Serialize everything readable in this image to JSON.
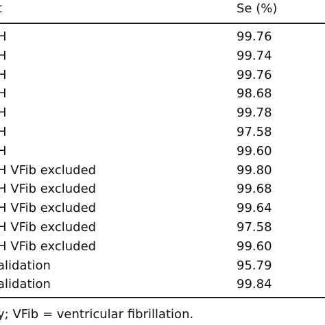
{
  "table": {
    "header": {
      "left": "t",
      "right": "Se (%)"
    },
    "rows": [
      {
        "left": "H",
        "right": "99.76"
      },
      {
        "left": "H",
        "right": "99.74"
      },
      {
        "left": "H",
        "right": "99.76"
      },
      {
        "left": "H",
        "right": "98.68"
      },
      {
        "left": "H",
        "right": "99.78"
      },
      {
        "left": "H",
        "right": "97.58"
      },
      {
        "left": "H",
        "right": "99.60"
      },
      {
        "left": "H VFib excluded",
        "right": "99.80"
      },
      {
        "left": "H VFib excluded",
        "right": "99.68"
      },
      {
        "left": "H VFib excluded",
        "right": "99.64"
      },
      {
        "left": "H VFib excluded",
        "right": "97.58"
      },
      {
        "left": "H VFib excluded",
        "right": "99.60"
      },
      {
        "left": "alidation",
        "right": "95.79"
      },
      {
        "left": "alidation",
        "right": "99.84"
      }
    ]
  },
  "footnote": "y; VFib = ventricular fibrillation."
}
